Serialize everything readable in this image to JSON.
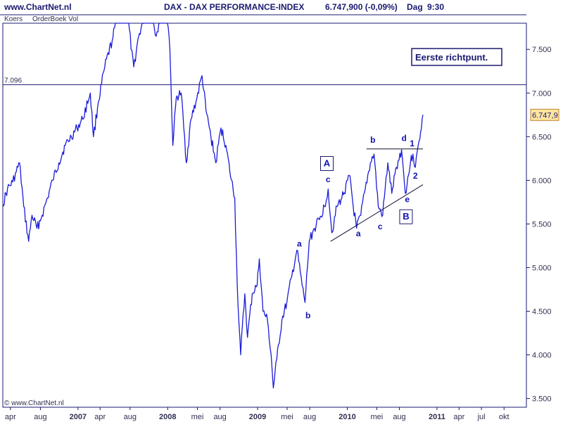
{
  "header": {
    "site": "www.ChartNet.nl",
    "title": "DAX - DAX PERFORMANCE-INDEX",
    "quote": "6.747,900 (-0,09%)",
    "period": "Dag",
    "time": "9:30"
  },
  "toolbar": {
    "koers": "Koers",
    "orderboek": "OrderBoek Vol"
  },
  "watermark": "© www.ChartNet.nl",
  "annotation_note": "Eerste richtpunt.",
  "last_price_tag": "6.747,9",
  "colors": {
    "series": "#1c1cd8",
    "frame": "#1a1a70",
    "text": "#1a1a70",
    "tag_bg": "#ffe6a0"
  },
  "chart_data": {
    "type": "line",
    "ylim": [
      3400,
      7800
    ],
    "yticks": [
      {
        "v": 3500,
        "label": "3.500"
      },
      {
        "v": 4000,
        "label": "4.000"
      },
      {
        "v": 4500,
        "label": "4.500"
      },
      {
        "v": 5000,
        "label": "5.000"
      },
      {
        "v": 5500,
        "label": "5.500"
      },
      {
        "v": 6000,
        "label": "6.000"
      },
      {
        "v": 6500,
        "label": "6.500"
      },
      {
        "v": 7000,
        "label": "7.000"
      },
      {
        "v": 7500,
        "label": "7.500"
      }
    ],
    "xlim": [
      "2006-03-01",
      "2011-12-31"
    ],
    "xticks": [
      {
        "d": "2006-04-01",
        "label": "apr",
        "bold": false
      },
      {
        "d": "2006-08-01",
        "label": "aug",
        "bold": false
      },
      {
        "d": "2007-01-01",
        "label": "2007",
        "bold": true
      },
      {
        "d": "2007-04-01",
        "label": "apr",
        "bold": false
      },
      {
        "d": "2007-08-01",
        "label": "aug",
        "bold": false
      },
      {
        "d": "2008-01-01",
        "label": "2008",
        "bold": true
      },
      {
        "d": "2008-05-01",
        "label": "mei",
        "bold": false
      },
      {
        "d": "2008-08-01",
        "label": "aug",
        "bold": false
      },
      {
        "d": "2009-01-01",
        "label": "2009",
        "bold": true
      },
      {
        "d": "2009-05-01",
        "label": "mei",
        "bold": false
      },
      {
        "d": "2009-08-01",
        "label": "aug",
        "bold": false
      },
      {
        "d": "2010-01-01",
        "label": "2010",
        "bold": true
      },
      {
        "d": "2010-05-01",
        "label": "mei",
        "bold": false
      },
      {
        "d": "2010-08-01",
        "label": "aug",
        "bold": false
      },
      {
        "d": "2011-01-01",
        "label": "2011",
        "bold": true
      },
      {
        "d": "2011-04-01",
        "label": "apr",
        "bold": false
      },
      {
        "d": "2011-07-01",
        "label": "jul",
        "bold": false
      },
      {
        "d": "2011-10-01",
        "label": "okt",
        "bold": false
      }
    ],
    "series": [
      {
        "points": [
          [
            "2006-03-01",
            5720
          ],
          [
            "2006-03-20",
            5900
          ],
          [
            "2006-04-10",
            5980
          ],
          [
            "2006-04-25",
            6100
          ],
          [
            "2006-05-08",
            6200
          ],
          [
            "2006-05-25",
            5700
          ],
          [
            "2006-06-14",
            5300
          ],
          [
            "2006-06-28",
            5600
          ],
          [
            "2006-07-18",
            5450
          ],
          [
            "2006-08-08",
            5600
          ],
          [
            "2006-08-30",
            5800
          ],
          [
            "2006-09-20",
            6000
          ],
          [
            "2006-10-15",
            6200
          ],
          [
            "2006-11-10",
            6400
          ],
          [
            "2006-12-05",
            6500
          ],
          [
            "2006-12-28",
            6600
          ],
          [
            "2007-01-20",
            6700
          ],
          [
            "2007-02-20",
            7000
          ],
          [
            "2007-03-05",
            6500
          ],
          [
            "2007-03-25",
            6900
          ],
          [
            "2007-04-20",
            7300
          ],
          [
            "2007-05-20",
            7600
          ],
          [
            "2007-06-15",
            7950
          ],
          [
            "2007-07-05",
            8000
          ],
          [
            "2007-07-20",
            8150
          ],
          [
            "2007-08-05",
            7500
          ],
          [
            "2007-08-16",
            7300
          ],
          [
            "2007-09-05",
            7650
          ],
          [
            "2007-10-01",
            7900
          ],
          [
            "2007-10-25",
            8000
          ],
          [
            "2007-11-15",
            7650
          ],
          [
            "2007-12-10",
            8000
          ],
          [
            "2007-12-28",
            8050
          ],
          [
            "2008-01-10",
            7500
          ],
          [
            "2008-01-22",
            6400
          ],
          [
            "2008-02-05",
            6950
          ],
          [
            "2008-02-25",
            7000
          ],
          [
            "2008-03-17",
            6200
          ],
          [
            "2008-04-05",
            6700
          ],
          [
            "2008-04-25",
            6900
          ],
          [
            "2008-05-20",
            7200
          ],
          [
            "2008-06-05",
            6800
          ],
          [
            "2008-06-25",
            6500
          ],
          [
            "2008-07-15",
            6200
          ],
          [
            "2008-08-05",
            6600
          ],
          [
            "2008-08-25",
            6400
          ],
          [
            "2008-09-10",
            6100
          ],
          [
            "2008-09-30",
            5800
          ],
          [
            "2008-10-10",
            4800
          ],
          [
            "2008-10-24",
            4000
          ],
          [
            "2008-11-10",
            4700
          ],
          [
            "2008-11-21",
            4200
          ],
          [
            "2008-12-10",
            4700
          ],
          [
            "2008-12-30",
            4800
          ],
          [
            "2009-01-08",
            5100
          ],
          [
            "2009-01-23",
            4500
          ],
          [
            "2009-02-10",
            4400
          ],
          [
            "2009-02-25",
            4000
          ],
          [
            "2009-03-06",
            3620
          ],
          [
            "2009-03-20",
            3950
          ],
          [
            "2009-04-10",
            4400
          ],
          [
            "2009-04-30",
            4600
          ],
          [
            "2009-05-20",
            4900
          ],
          [
            "2009-06-10",
            5200
          ],
          [
            "2009-07-01",
            4800
          ],
          [
            "2009-07-13",
            4600
          ],
          [
            "2009-07-30",
            5300
          ],
          [
            "2009-08-20",
            5450
          ],
          [
            "2009-09-10",
            5550
          ],
          [
            "2009-09-30",
            5700
          ],
          [
            "2009-10-15",
            5900
          ],
          [
            "2009-10-30",
            5400
          ],
          [
            "2009-11-20",
            5700
          ],
          [
            "2009-12-10",
            5800
          ],
          [
            "2010-01-12",
            6050
          ],
          [
            "2010-01-25",
            5700
          ],
          [
            "2010-02-08",
            5450
          ],
          [
            "2010-02-25",
            5600
          ],
          [
            "2010-03-15",
            5900
          ],
          [
            "2010-04-05",
            6200
          ],
          [
            "2010-04-20",
            6300
          ],
          [
            "2010-05-07",
            5700
          ],
          [
            "2010-05-25",
            5600
          ],
          [
            "2010-06-15",
            6200
          ],
          [
            "2010-07-01",
            5850
          ],
          [
            "2010-07-20",
            6150
          ],
          [
            "2010-08-10",
            6350
          ],
          [
            "2010-08-25",
            5850
          ],
          [
            "2010-09-15",
            6200
          ],
          [
            "2010-09-25",
            6300
          ],
          [
            "2010-10-05",
            6150
          ],
          [
            "2010-10-20",
            6450
          ],
          [
            "2010-11-05",
            6750
          ]
        ]
      }
    ],
    "reference_lines": [
      {
        "value": 7096,
        "label": "7.096"
      }
    ],
    "trendlines": [
      {
        "points": [
          [
            "2009-10-25",
            5300
          ],
          [
            "2010-11-05",
            5950
          ]
        ]
      },
      {
        "points": [
          [
            "2010-03-20",
            6360
          ],
          [
            "2010-11-05",
            6360
          ]
        ]
      }
    ],
    "wave_labels": [
      {
        "text": "a",
        "d": "2009-06-20",
        "v": 5240,
        "big": false
      },
      {
        "text": "b",
        "d": "2009-07-25",
        "v": 4420,
        "big": false
      },
      {
        "text": "c",
        "d": "2009-10-15",
        "v": 5980,
        "big": false
      },
      {
        "text": "a",
        "d": "2010-02-15",
        "v": 5360,
        "big": false
      },
      {
        "text": "b",
        "d": "2010-04-15",
        "v": 6430,
        "big": false
      },
      {
        "text": "c",
        "d": "2010-05-15",
        "v": 5440,
        "big": false
      },
      {
        "text": "d",
        "d": "2010-08-20",
        "v": 6450,
        "big": false
      },
      {
        "text": "e",
        "d": "2010-09-02",
        "v": 5750,
        "big": false
      },
      {
        "text": "1",
        "d": "2010-09-22",
        "v": 6390,
        "big": false
      },
      {
        "text": "2",
        "d": "2010-10-05",
        "v": 6020,
        "big": false
      },
      {
        "text": "A",
        "d": "2009-10-10",
        "v": 6160,
        "big": true,
        "boxed": true
      },
      {
        "text": "B",
        "d": "2010-08-28",
        "v": 5550,
        "big": true,
        "boxed": true
      }
    ]
  }
}
